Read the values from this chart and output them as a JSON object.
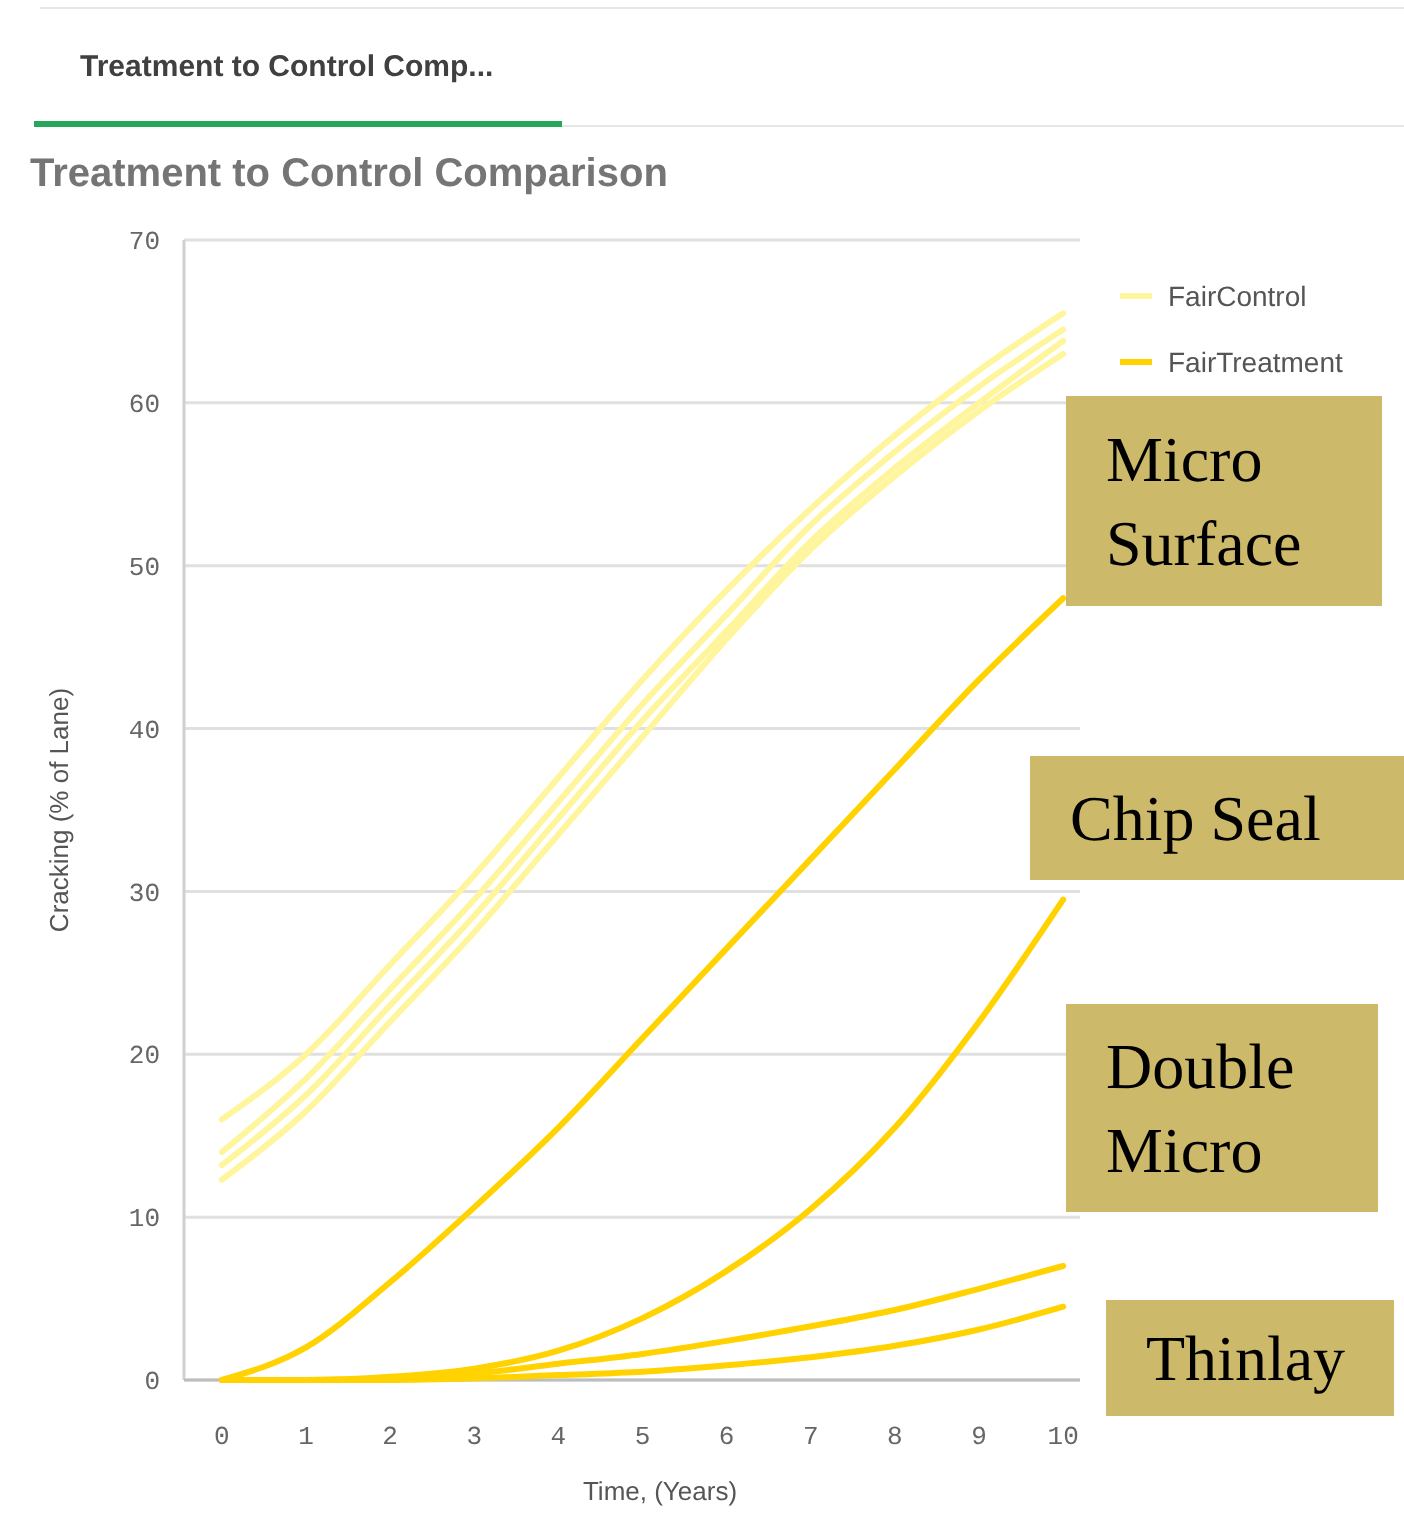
{
  "chart_data": {
    "type": "line",
    "title": "Treatment to Control Comparison",
    "subtitle": "Treatment to Control Comp...",
    "xlabel": "Time, (Years)",
    "ylabel": "Cracking (% of Lane)",
    "x": [
      0,
      1,
      2,
      3,
      4,
      5,
      6,
      7,
      8,
      9,
      10
    ],
    "series": [
      {
        "name": "FairControl",
        "color": "#fff59d",
        "values": [
          16,
          20,
          25.5,
          31,
          37,
          43,
          48.5,
          53.5,
          58,
          62,
          65.5
        ]
      },
      {
        "color": "#fff59d",
        "values": [
          14,
          18.5,
          24,
          29.5,
          35.5,
          41.5,
          47,
          52.5,
          57,
          61,
          64.5
        ]
      },
      {
        "color": "#fff59d",
        "values": [
          13.2,
          17.5,
          23,
          28.5,
          34.5,
          40.5,
          46,
          51.5,
          56,
          60,
          63.8
        ]
      },
      {
        "color": "#fff59d",
        "values": [
          12.3,
          16.5,
          22,
          27.5,
          33.5,
          39.5,
          45.5,
          51,
          55.5,
          59.5,
          63
        ]
      },
      {
        "name": "FairTreatment",
        "color": "#ffd200",
        "values": [
          0,
          2,
          6,
          10.6,
          15.5,
          21,
          26.5,
          32,
          37.5,
          43,
          48
        ]
      },
      {
        "color": "#ffd200",
        "values": [
          0,
          0,
          0.2,
          0.7,
          1.8,
          3.8,
          6.7,
          10.5,
          15.5,
          22,
          29.5
        ]
      },
      {
        "color": "#ffd200",
        "values": [
          0,
          0,
          0.1,
          0.4,
          1,
          1.6,
          2.4,
          3.3,
          4.3,
          5.6,
          7
        ]
      },
      {
        "color": "#ffd200",
        "values": [
          0,
          0,
          0,
          0.1,
          0.3,
          0.5,
          0.9,
          1.4,
          2.1,
          3.1,
          4.5
        ]
      }
    ],
    "xlim": [
      -0.45,
      10.2
    ],
    "xticks": [
      0,
      1,
      2,
      3,
      4,
      5,
      6,
      7,
      8,
      9,
      10
    ],
    "ylim": [
      0,
      70
    ],
    "yticks": [
      0,
      10,
      20,
      30,
      40,
      50,
      60,
      70
    ],
    "grid": "y",
    "legend": "top right",
    "marker": "none",
    "line_style": "solid",
    "annotations": [
      "Micro Surface",
      "Chip Seal",
      "Double Micro",
      "Thinlay"
    ]
  }
}
